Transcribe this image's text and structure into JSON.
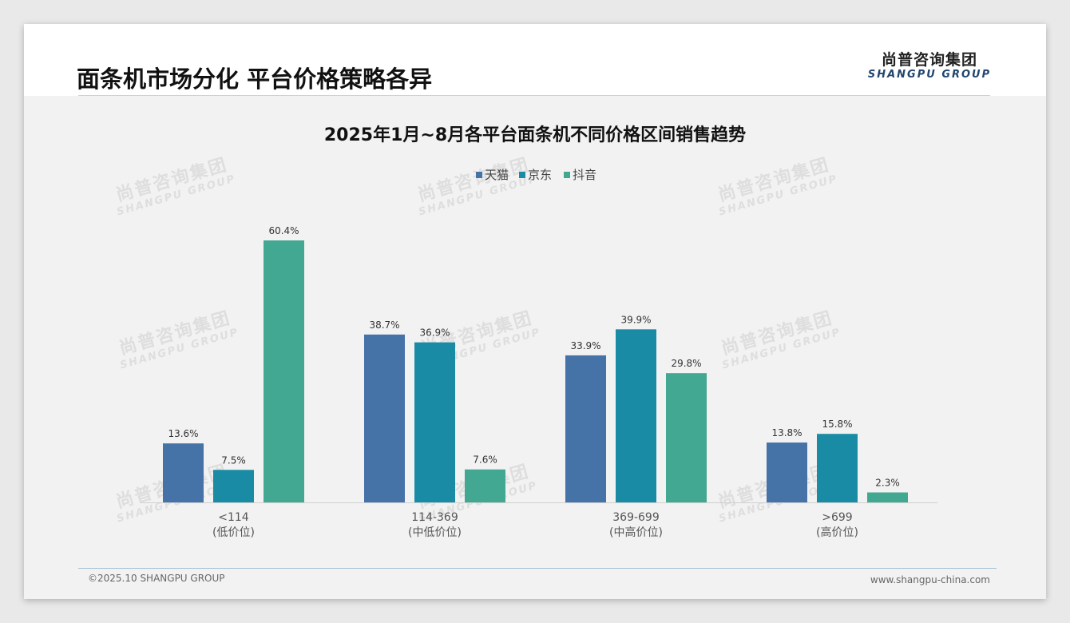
{
  "header": {
    "title": "面条机市场分化 平台价格策略各异"
  },
  "logo": {
    "cn": "尚普咨询集团",
    "en": "SHANGPU GROUP"
  },
  "watermark": {
    "cn": "尚普咨询集团",
    "en": "SHANGPU GROUP"
  },
  "footer": {
    "copyright": "©2025.10 SHANGPU GROUP",
    "website": "www.shangpu-china.com"
  },
  "colors": {
    "tmall": "#4573a8",
    "jd": "#1a8ba4",
    "douyin": "#43a892"
  },
  "chart_data": {
    "type": "bar",
    "title": "2025年1月~8月各平台面条机不同价格区间销售趋势",
    "categories": [
      {
        "range": "<114",
        "label": "(低价位)"
      },
      {
        "range": "114-369",
        "label": "(中低价位)"
      },
      {
        "range": "369-699",
        "label": "(中高价位)"
      },
      {
        "range": ">699",
        "label": "(高价位)"
      }
    ],
    "series": [
      {
        "name": "天猫",
        "values": [
          13.6,
          38.7,
          33.9,
          13.8
        ],
        "labels": [
          "13.6%",
          "38.7%",
          "33.9%",
          "13.8%"
        ]
      },
      {
        "name": "京东",
        "values": [
          7.5,
          36.9,
          39.9,
          15.8
        ],
        "labels": [
          "7.5%",
          "36.9%",
          "39.9%",
          "15.8%"
        ]
      },
      {
        "name": "抖音",
        "values": [
          60.4,
          7.6,
          29.8,
          2.3
        ],
        "labels": [
          "60.4%",
          "7.6%",
          "29.8%",
          "2.3%"
        ]
      }
    ],
    "unit": "%",
    "ylim": [
      0,
      60.4
    ],
    "legend_position": "top-center",
    "grid": false
  }
}
